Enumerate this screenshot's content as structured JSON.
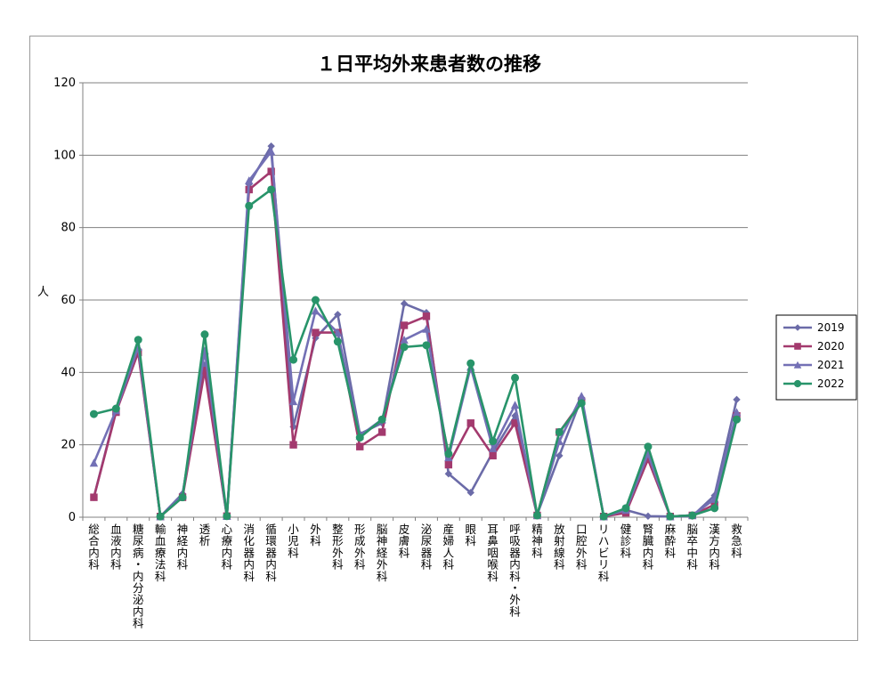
{
  "chart_data": {
    "type": "line",
    "title": "１日平均外来患者数の推移",
    "ylabel": "人",
    "xlabel": "",
    "ylim": [
      0,
      120
    ],
    "yticks": [
      0,
      20,
      40,
      60,
      80,
      100,
      120
    ],
    "grid": true,
    "legend_position": "right",
    "categories": [
      "総合内科",
      "血液内科",
      "糖尿病・内分泌内科",
      "輸血療法科",
      "神経内科",
      "透析",
      "心療内科",
      "消化器内科",
      "循環器内科",
      "小児科",
      "外科",
      "整形外科",
      "形成外科",
      "脳神経外科",
      "皮膚科",
      "泌尿器科",
      "産婦人科",
      "眼科",
      "耳鼻咽喉科",
      "呼吸器内科・外科",
      "精神科",
      "放射線科",
      "口腔外科",
      "リハビリ科",
      "健診科",
      "腎臓内科",
      "麻酔科",
      "脳卒中科",
      "漢方内科",
      "救急科"
    ],
    "series": [
      {
        "name": "2019",
        "color": "#6b6ba8",
        "marker": "diamond",
        "values": [
          5.5,
          29.5,
          46,
          0.2,
          6.5,
          42,
          0.3,
          92,
          102.5,
          25,
          49.5,
          56,
          23,
          26,
          59,
          56.5,
          12,
          6.8,
          18,
          28,
          0.8,
          17,
          33,
          0.2,
          2,
          0.3,
          0.2,
          0.3,
          6,
          32.5
        ]
      },
      {
        "name": "2020",
        "color": "#a33a6e",
        "marker": "square",
        "values": [
          5.5,
          29,
          45.5,
          0.2,
          5.5,
          40.5,
          0.3,
          90.5,
          95.5,
          20,
          51,
          51,
          19.5,
          23.5,
          53,
          55.5,
          14.5,
          26,
          17,
          26,
          0.5,
          23.5,
          32,
          0.2,
          1.2,
          16,
          0.2,
          0.5,
          3.5,
          28
        ]
      },
      {
        "name": "2021",
        "color": "#7370b5",
        "marker": "triangle",
        "values": [
          15,
          29.5,
          47,
          0.2,
          6,
          46,
          0.3,
          93,
          101,
          32,
          57,
          51,
          22.5,
          27,
          49,
          52,
          16.5,
          41.5,
          19,
          31,
          0.5,
          21,
          33.5,
          0.2,
          2,
          17.5,
          0.2,
          0.5,
          5,
          29
        ]
      },
      {
        "name": "2022",
        "color": "#28946a",
        "marker": "circle",
        "values": [
          28.5,
          30,
          49,
          0.2,
          5.5,
          50.5,
          0.3,
          86,
          90.5,
          43.5,
          60,
          48.5,
          22,
          27,
          47,
          47.5,
          17.5,
          42.5,
          21,
          38.5,
          0.5,
          23.5,
          31.5,
          0.2,
          2.5,
          19.5,
          0.2,
          0.5,
          2.5,
          27
        ]
      }
    ]
  }
}
